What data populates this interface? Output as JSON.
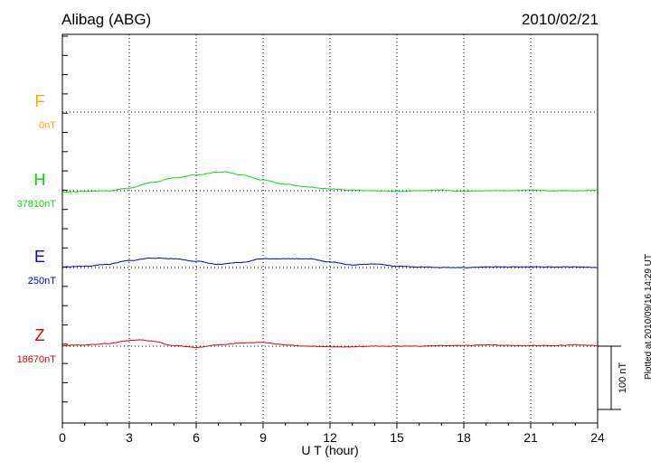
{
  "title": "Alibag (ABG)",
  "date": "2010/02/21",
  "footer": "Plotted at 2010/09/16 14:29 UT",
  "chart_data": {
    "type": "line",
    "xlabel": "U T (hour)",
    "xlim": [
      0,
      24
    ],
    "x_ticks": [
      "0",
      "3",
      "6",
      "9",
      "12",
      "15",
      "18",
      "21",
      "24"
    ],
    "scale_bar": "100 nT",
    "scale_bar_nT": 100,
    "grid": true,
    "series": [
      {
        "name": "F",
        "baseline": "0nT",
        "color": "#ffa500",
        "x": [],
        "values": []
      },
      {
        "name": "H",
        "baseline": "37810nT",
        "color": "#00e000",
        "x": [
          0,
          1,
          2,
          3,
          4,
          5,
          6,
          7,
          7.3,
          8,
          9,
          10,
          11,
          12,
          13,
          14,
          15,
          16,
          17,
          18,
          19,
          20,
          21,
          22,
          23,
          24
        ],
        "values": [
          -2,
          -1,
          0,
          4,
          13,
          20,
          25,
          29,
          30,
          25,
          17,
          10,
          6,
          3,
          1,
          0,
          -1,
          0,
          1,
          -1,
          0,
          0,
          1,
          0,
          0,
          1
        ]
      },
      {
        "name": "E",
        "baseline": "250nT",
        "color": "#0000d0",
        "x": [
          0,
          1,
          2,
          3,
          4,
          5,
          6,
          7,
          8,
          9,
          10,
          11,
          12,
          13,
          14,
          15,
          16,
          17,
          18,
          19,
          20,
          21,
          22,
          23,
          24
        ],
        "values": [
          1,
          2,
          5,
          11,
          15,
          14,
          10,
          5,
          8,
          14,
          14,
          14,
          9,
          4,
          6,
          2,
          1,
          0,
          0,
          1,
          1,
          1,
          1,
          1,
          0
        ]
      },
      {
        "name": "Z",
        "baseline": "18670nT",
        "color": "#e00000",
        "x": [
          0,
          1,
          2,
          3,
          3.5,
          4,
          5,
          6,
          7,
          8,
          9,
          10,
          11,
          12,
          13,
          14,
          15,
          16,
          17,
          18,
          19,
          20,
          21,
          22,
          23,
          24
        ],
        "values": [
          1,
          2,
          4,
          9,
          10,
          8,
          1,
          -2,
          2,
          5,
          6,
          2,
          0,
          -1,
          -1,
          0,
          0,
          0,
          1,
          1,
          2,
          1,
          1,
          1,
          2,
          1
        ]
      }
    ]
  }
}
